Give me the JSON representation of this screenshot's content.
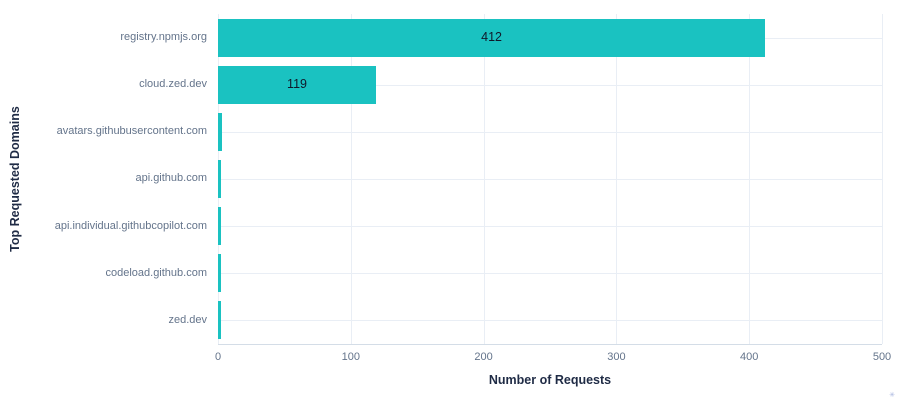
{
  "chart_data": {
    "type": "bar",
    "orientation": "horizontal",
    "title": "",
    "xlabel": "Number of Requests",
    "ylabel": "Top Requested Domains",
    "categories": [
      "registry.npmjs.org",
      "cloud.zed.dev",
      "avatars.githubusercontent.com",
      "api.github.com",
      "api.individual.githubcopilot.com",
      "codeload.github.com",
      "zed.dev"
    ],
    "values": [
      412,
      119,
      3,
      2,
      2,
      2,
      2
    ],
    "bar_labels": [
      "412",
      "119",
      "",
      "",
      "",
      "",
      ""
    ],
    "xlim": [
      0,
      500
    ],
    "xticks": [
      0,
      100,
      200,
      300,
      400,
      500
    ],
    "grid": true,
    "legend_position": "none"
  },
  "colors": {
    "bar": "#1ac2c1",
    "grid": "#e9eef5",
    "axis_line": "#d4dde7",
    "tick_label": "#64748b",
    "category_label": "#64748b",
    "axis_title": "#1f2b45",
    "value_label": "#10192b",
    "background": "#ffffff"
  },
  "decorations": {
    "corner_mark": "✳"
  }
}
